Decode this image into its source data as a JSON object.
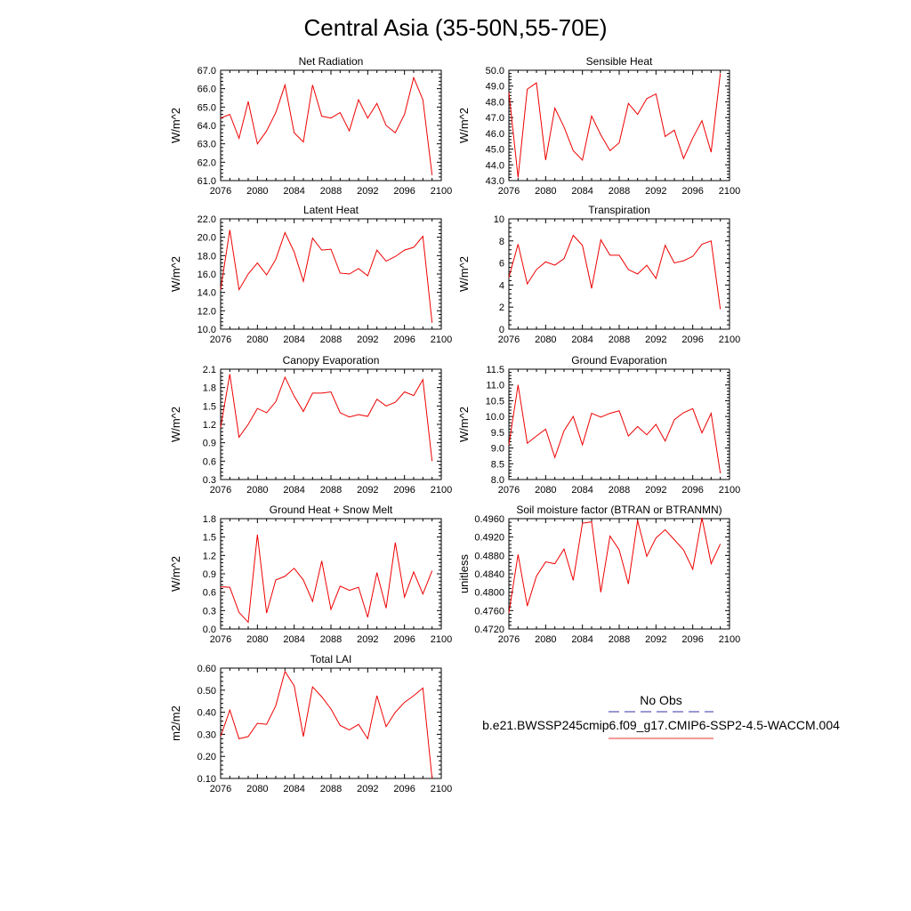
{
  "page_title": "Central Asia (35-50N,55-70E)",
  "legend": {
    "entries": [
      {
        "label": "No Obs",
        "color": "#3333aa",
        "dash": "dashed"
      },
      {
        "label": "b.e21.BWSSP245cmip6.f09_g17.CMIP6-SSP2-4.5-WACCM.004",
        "color": "#ee3333",
        "dash": "solid"
      }
    ]
  },
  "chart_data": [
    {
      "type": "line",
      "title": "Net Radiation",
      "xlabel": "",
      "ylabel": "W/m^2",
      "xlim": [
        2076,
        2100
      ],
      "ylim": [
        61.0,
        67.0
      ],
      "xticks": [
        "2076",
        "2080",
        "2084",
        "2088",
        "2092",
        "2096",
        "2100"
      ],
      "yticks": [
        "61.0",
        "62.0",
        "63.0",
        "64.0",
        "65.0",
        "66.0",
        "67.0"
      ],
      "x": [
        2076,
        2077,
        2078,
        2079,
        2080,
        2081,
        2082,
        2083,
        2084,
        2085,
        2086,
        2087,
        2088,
        2089,
        2090,
        2091,
        2092,
        2093,
        2094,
        2095,
        2096,
        2097,
        2098,
        2099
      ],
      "series": [
        {
          "values": [
            64.4,
            64.6,
            63.3,
            65.3,
            63.0,
            63.7,
            64.7,
            66.2,
            63.6,
            63.1,
            66.2,
            64.5,
            64.4,
            64.7,
            63.7,
            65.4,
            64.4,
            65.2,
            64.0,
            63.6,
            64.6,
            66.6,
            65.4,
            61.3
          ],
          "color": "#ee0000"
        }
      ]
    },
    {
      "type": "line",
      "title": "Sensible Heat",
      "xlabel": "",
      "ylabel": "W/m^2",
      "xlim": [
        2076,
        2100
      ],
      "ylim": [
        43.0,
        50.0
      ],
      "xticks": [
        "2076",
        "2080",
        "2084",
        "2088",
        "2092",
        "2096",
        "2100"
      ],
      "yticks": [
        "43.0",
        "44.0",
        "45.0",
        "46.0",
        "47.0",
        "48.0",
        "49.0",
        "50.0"
      ],
      "x": [
        2076,
        2077,
        2078,
        2079,
        2080,
        2081,
        2082,
        2083,
        2084,
        2085,
        2086,
        2087,
        2088,
        2089,
        2090,
        2091,
        2092,
        2093,
        2094,
        2095,
        2096,
        2097,
        2098,
        2099
      ],
      "series": [
        {
          "values": [
            48.6,
            43.2,
            48.8,
            49.2,
            44.3,
            47.6,
            46.4,
            44.9,
            44.3,
            47.1,
            45.9,
            44.9,
            45.4,
            47.9,
            47.2,
            48.2,
            48.5,
            45.8,
            46.2,
            44.4,
            45.7,
            46.8,
            44.8,
            49.8
          ],
          "color": "#ee0000"
        }
      ]
    },
    {
      "type": "line",
      "title": "Latent Heat",
      "xlabel": "",
      "ylabel": "W/m^2",
      "xlim": [
        2076,
        2100
      ],
      "ylim": [
        10.0,
        22.0
      ],
      "xticks": [
        "2076",
        "2080",
        "2084",
        "2088",
        "2092",
        "2096",
        "2100"
      ],
      "yticks": [
        "10.0",
        "12.0",
        "14.0",
        "16.0",
        "18.0",
        "20.0",
        "22.0"
      ],
      "x": [
        2076,
        2077,
        2078,
        2079,
        2080,
        2081,
        2082,
        2083,
        2084,
        2085,
        2086,
        2087,
        2088,
        2089,
        2090,
        2091,
        2092,
        2093,
        2094,
        2095,
        2096,
        2097,
        2098,
        2099
      ],
      "series": [
        {
          "values": [
            14.3,
            20.8,
            14.3,
            16.0,
            17.2,
            15.9,
            17.6,
            20.5,
            18.4,
            15.2,
            19.9,
            18.6,
            18.7,
            16.1,
            16.0,
            16.6,
            15.8,
            18.6,
            17.4,
            17.9,
            18.6,
            18.9,
            20.1,
            10.7
          ],
          "color": "#ee0000"
        }
      ]
    },
    {
      "type": "line",
      "title": "Transpiration",
      "xlabel": "",
      "ylabel": "W/m^2",
      "xlim": [
        2076,
        2100
      ],
      "ylim": [
        0,
        10
      ],
      "xticks": [
        "2076",
        "2080",
        "2084",
        "2088",
        "2092",
        "2096",
        "2100"
      ],
      "yticks": [
        "0",
        "2",
        "4",
        "6",
        "8",
        "10"
      ],
      "x": [
        2076,
        2077,
        2078,
        2079,
        2080,
        2081,
        2082,
        2083,
        2084,
        2085,
        2086,
        2087,
        2088,
        2089,
        2090,
        2091,
        2092,
        2093,
        2094,
        2095,
        2096,
        2097,
        2098,
        2099
      ],
      "series": [
        {
          "values": [
            4.7,
            7.7,
            4.1,
            5.4,
            6.1,
            5.8,
            6.4,
            8.5,
            7.6,
            3.7,
            8.1,
            6.7,
            6.7,
            5.4,
            5.0,
            5.8,
            4.6,
            7.6,
            6.0,
            6.2,
            6.6,
            7.7,
            8.0,
            1.8
          ],
          "color": "#ee0000"
        }
      ]
    },
    {
      "type": "line",
      "title": "Canopy Evaporation",
      "xlabel": "",
      "ylabel": "W/m^2",
      "xlim": [
        2076,
        2100
      ],
      "ylim": [
        0.3,
        2.1
      ],
      "xticks": [
        "2076",
        "2080",
        "2084",
        "2088",
        "2092",
        "2096",
        "2100"
      ],
      "yticks": [
        "0.3",
        "0.6",
        "0.9",
        "1.2",
        "1.5",
        "1.8",
        "2.1"
      ],
      "x": [
        2076,
        2077,
        2078,
        2079,
        2080,
        2081,
        2082,
        2083,
        2084,
        2085,
        2086,
        2087,
        2088,
        2089,
        2090,
        2091,
        2092,
        2093,
        2094,
        2095,
        2096,
        2097,
        2098,
        2099
      ],
      "series": [
        {
          "values": [
            1.15,
            2.02,
            0.99,
            1.2,
            1.46,
            1.39,
            1.57,
            1.97,
            1.66,
            1.41,
            1.71,
            1.71,
            1.73,
            1.39,
            1.32,
            1.36,
            1.33,
            1.61,
            1.5,
            1.56,
            1.73,
            1.67,
            1.93,
            0.6
          ],
          "color": "#ee0000"
        }
      ]
    },
    {
      "type": "line",
      "title": "Ground Evaporation",
      "xlabel": "",
      "ylabel": "W/m^2",
      "xlim": [
        2076,
        2100
      ],
      "ylim": [
        8.0,
        11.5
      ],
      "xticks": [
        "2076",
        "2080",
        "2084",
        "2088",
        "2092",
        "2096",
        "2100"
      ],
      "yticks": [
        "8.0",
        "8.5",
        "9.0",
        "9.5",
        "10.0",
        "10.5",
        "11.0",
        "11.5"
      ],
      "x": [
        2076,
        2077,
        2078,
        2079,
        2080,
        2081,
        2082,
        2083,
        2084,
        2085,
        2086,
        2087,
        2088,
        2089,
        2090,
        2091,
        2092,
        2093,
        2094,
        2095,
        2096,
        2097,
        2098,
        2099
      ],
      "series": [
        {
          "values": [
            9.1,
            11.0,
            9.15,
            9.38,
            9.6,
            8.7,
            9.55,
            10.0,
            9.1,
            10.1,
            9.98,
            10.1,
            10.18,
            9.38,
            9.68,
            9.42,
            9.75,
            9.22,
            9.9,
            10.12,
            10.25,
            9.48,
            10.1,
            8.2
          ],
          "color": "#ee0000"
        }
      ]
    },
    {
      "type": "line",
      "title": "Ground Heat + Snow Melt",
      "xlabel": "",
      "ylabel": "W/m^2",
      "xlim": [
        2076,
        2100
      ],
      "ylim": [
        0.0,
        1.8
      ],
      "xticks": [
        "2076",
        "2080",
        "2084",
        "2088",
        "2092",
        "2096",
        "2100"
      ],
      "yticks": [
        "0.0",
        "0.3",
        "0.6",
        "0.9",
        "1.2",
        "1.5",
        "1.8"
      ],
      "x": [
        2076,
        2077,
        2078,
        2079,
        2080,
        2081,
        2082,
        2083,
        2084,
        2085,
        2086,
        2087,
        2088,
        2089,
        2090,
        2091,
        2092,
        2093,
        2094,
        2095,
        2096,
        2097,
        2098,
        2099
      ],
      "series": [
        {
          "values": [
            0.69,
            0.68,
            0.27,
            0.11,
            1.54,
            0.26,
            0.8,
            0.86,
            0.99,
            0.8,
            0.45,
            1.11,
            0.32,
            0.7,
            0.63,
            0.68,
            0.19,
            0.92,
            0.34,
            1.41,
            0.52,
            0.93,
            0.57,
            0.95
          ],
          "color": "#ee0000"
        }
      ]
    },
    {
      "type": "line",
      "title": "Soil moisture factor (BTRAN or BTRANMN)",
      "xlabel": "",
      "ylabel": "unitless",
      "xlim": [
        2076,
        2100
      ],
      "ylim": [
        0.472,
        0.496
      ],
      "xticks": [
        "2076",
        "2080",
        "2084",
        "2088",
        "2092",
        "2096",
        "2100"
      ],
      "yticks": [
        "0.4720",
        "0.4760",
        "0.4800",
        "0.4840",
        "0.4880",
        "0.4920",
        "0.4960"
      ],
      "x": [
        2076,
        2077,
        2078,
        2079,
        2080,
        2081,
        2082,
        2083,
        2084,
        2085,
        2086,
        2087,
        2088,
        2089,
        2090,
        2091,
        2092,
        2093,
        2094,
        2095,
        2096,
        2097,
        2098,
        2099
      ],
      "series": [
        {
          "values": [
            0.4755,
            0.4882,
            0.477,
            0.4835,
            0.4866,
            0.4862,
            0.4894,
            0.4826,
            0.495,
            0.4953,
            0.48,
            0.4922,
            0.4892,
            0.4818,
            0.4956,
            0.4878,
            0.4918,
            0.4936,
            0.4914,
            0.4892,
            0.485,
            0.4962,
            0.4862,
            0.4905
          ],
          "color": "#ee0000"
        }
      ]
    },
    {
      "type": "line",
      "title": "Total LAI",
      "xlabel": "",
      "ylabel": "m2/m2",
      "xlim": [
        2076,
        2100
      ],
      "ylim": [
        0.1,
        0.6
      ],
      "xticks": [
        "2076",
        "2080",
        "2084",
        "2088",
        "2092",
        "2096",
        "2100"
      ],
      "yticks": [
        "0.10",
        "0.20",
        "0.30",
        "0.40",
        "0.50",
        "0.60"
      ],
      "x": [
        2076,
        2077,
        2078,
        2079,
        2080,
        2081,
        2082,
        2083,
        2084,
        2085,
        2086,
        2087,
        2088,
        2089,
        2090,
        2091,
        2092,
        2093,
        2094,
        2095,
        2096,
        2097,
        2098,
        2099
      ],
      "series": [
        {
          "values": [
            0.29,
            0.41,
            0.28,
            0.29,
            0.35,
            0.345,
            0.43,
            0.585,
            0.52,
            0.29,
            0.515,
            0.47,
            0.415,
            0.34,
            0.32,
            0.345,
            0.28,
            0.475,
            0.335,
            0.4,
            0.445,
            0.475,
            0.51,
            0.1
          ],
          "color": "#ee0000"
        }
      ]
    }
  ]
}
